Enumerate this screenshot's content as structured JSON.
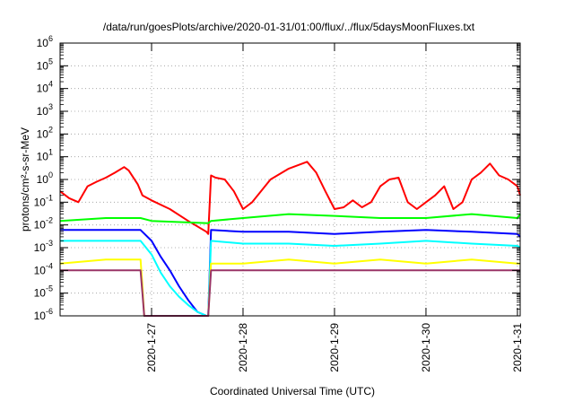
{
  "chart_data": {
    "type": "line",
    "title": "/data/run/goesPlots/archive/2020-01-31/01:00/flux/../flux/5daysMoonFluxes.txt",
    "xlabel": "Coordinated Universal Time (UTC)",
    "ylabel": "protons/cm²-s-sr-MeV",
    "yscale": "log",
    "ylim": [
      1e-06,
      1000000.0
    ],
    "xlim": [
      0,
      5.03
    ],
    "x_unit": "days since 2020-01-26 00:00 UTC",
    "y_tick_labels": [
      {
        "base": "10",
        "exp": "-6"
      },
      {
        "base": "10",
        "exp": "-5"
      },
      {
        "base": "10",
        "exp": "-4"
      },
      {
        "base": "10",
        "exp": "-3"
      },
      {
        "base": "10",
        "exp": "-2"
      },
      {
        "base": "10",
        "exp": "-1"
      },
      {
        "base": "10",
        "exp": "0"
      },
      {
        "base": "10",
        "exp": "1"
      },
      {
        "base": "10",
        "exp": "2"
      },
      {
        "base": "10",
        "exp": "3"
      },
      {
        "base": "10",
        "exp": "4"
      },
      {
        "base": "10",
        "exp": "5"
      },
      {
        "base": "10",
        "exp": "6"
      }
    ],
    "x_ticks": [
      {
        "x": 1,
        "label": "2020-1-27"
      },
      {
        "x": 2,
        "label": "2020-1-28"
      },
      {
        "x": 3,
        "label": "2020-1-29"
      },
      {
        "x": 4,
        "label": "2020-1-30"
      },
      {
        "x": 5,
        "label": "2020-1-31"
      }
    ],
    "grid": true,
    "series": [
      {
        "color": "#ff0000",
        "x": [
          0.0,
          0.1,
          0.2,
          0.3,
          0.4,
          0.5,
          0.6,
          0.7,
          0.75,
          0.85,
          0.9,
          1.0,
          1.2,
          1.4,
          1.6,
          1.62,
          1.65,
          1.7,
          1.8,
          1.9,
          2.0,
          2.1,
          2.3,
          2.5,
          2.7,
          2.8,
          2.9,
          3.0,
          3.1,
          3.2,
          3.3,
          3.4,
          3.5,
          3.6,
          3.7,
          3.8,
          3.9,
          4.0,
          4.1,
          4.2,
          4.3,
          4.4,
          4.5,
          4.6,
          4.7,
          4.8,
          4.9,
          5.0,
          5.03
        ],
        "y": [
          0.3,
          0.15,
          0.1,
          0.5,
          0.8,
          1.2,
          2.0,
          3.5,
          2.5,
          0.6,
          0.2,
          0.12,
          0.05,
          0.015,
          0.005,
          0.004,
          1.5,
          1.2,
          1.0,
          0.3,
          0.05,
          0.1,
          1.0,
          3.0,
          6.0,
          2.0,
          0.3,
          0.05,
          0.06,
          0.12,
          0.06,
          0.1,
          0.5,
          1.0,
          1.2,
          0.1,
          0.05,
          0.1,
          0.2,
          0.5,
          0.05,
          0.1,
          1.0,
          2.0,
          5.0,
          1.5,
          1.0,
          0.5,
          0.2
        ]
      },
      {
        "color": "#00ff00",
        "x": [
          0.0,
          0.5,
          0.88,
          1.0,
          1.62,
          1.65,
          2.0,
          2.5,
          3.0,
          3.5,
          4.0,
          4.5,
          5.0,
          5.03
        ],
        "y": [
          0.015,
          0.02,
          0.02,
          0.015,
          0.012,
          0.015,
          0.02,
          0.03,
          0.025,
          0.02,
          0.02,
          0.03,
          0.02,
          0.03
        ]
      },
      {
        "color": "#0000ff",
        "x": [
          0.0,
          0.5,
          0.88,
          1.0,
          1.1,
          1.2,
          1.3,
          1.4,
          1.5,
          1.6,
          1.62,
          1.65,
          2.0,
          2.5,
          3.0,
          3.5,
          4.0,
          4.5,
          5.0,
          5.03
        ],
        "y": [
          0.006,
          0.006,
          0.006,
          0.002,
          0.0004,
          0.0001,
          2e-05,
          5e-06,
          1.5e-06,
          1e-06,
          1e-06,
          0.006,
          0.005,
          0.005,
          0.004,
          0.005,
          0.006,
          0.005,
          0.004,
          0.003
        ]
      },
      {
        "color": "#00ffff",
        "x": [
          0.0,
          0.5,
          0.88,
          1.0,
          1.1,
          1.2,
          1.3,
          1.4,
          1.5,
          1.6,
          1.62,
          1.65,
          2.0,
          2.5,
          3.0,
          3.5,
          4.0,
          4.5,
          5.0,
          5.03
        ],
        "y": [
          0.002,
          0.002,
          0.002,
          0.0005,
          8e-05,
          2e-05,
          7e-06,
          3e-06,
          1.5e-06,
          1e-06,
          1e-06,
          0.002,
          0.0015,
          0.0015,
          0.0012,
          0.0015,
          0.002,
          0.0015,
          0.0012,
          0.001
        ]
      },
      {
        "color": "#ffff00",
        "x": [
          0.0,
          0.5,
          0.88,
          0.9,
          0.92,
          1.62,
          1.65,
          2.0,
          2.5,
          3.0,
          3.5,
          4.0,
          4.5,
          5.0,
          5.03
        ],
        "y": [
          0.0002,
          0.0003,
          0.0003,
          2e-05,
          1e-06,
          1e-06,
          0.0002,
          0.0002,
          0.0003,
          0.0002,
          0.0003,
          0.0002,
          0.0003,
          0.0002,
          0.0002
        ]
      },
      {
        "color": "#993366",
        "x": [
          0.0,
          0.5,
          0.88,
          0.9,
          0.92,
          1.62,
          1.65,
          2.0,
          2.5,
          3.0,
          3.5,
          4.0,
          4.5,
          5.0,
          5.03
        ],
        "y": [
          0.0001,
          0.0001,
          0.0001,
          1e-05,
          1e-06,
          1e-06,
          0.0001,
          0.0001,
          0.0001,
          0.0001,
          0.0001,
          0.0001,
          0.0001,
          0.0001,
          0.0001
        ]
      }
    ]
  }
}
